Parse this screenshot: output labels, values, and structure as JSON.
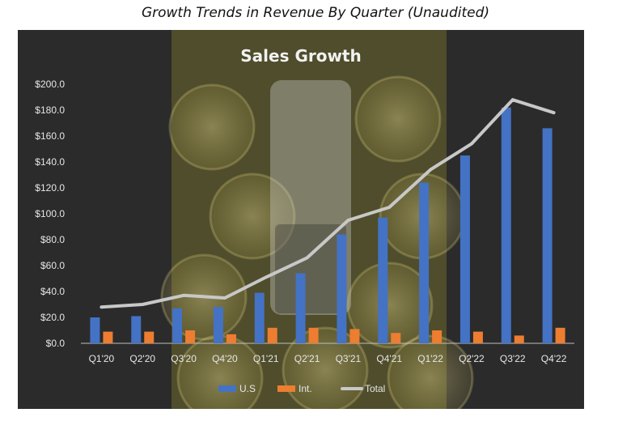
{
  "page": {
    "caption": "Growth Trends in Revenue By Quarter (Unaudited)"
  },
  "colors": {
    "us": "#4472c4",
    "intl": "#ed7d31",
    "total": "#c8c8c8",
    "background": "#2b2b2b",
    "highlight": "#8a8a2a"
  },
  "chart_data": {
    "type": "bar",
    "title": "Sales Growth",
    "categories": [
      "Q1'20",
      "Q2'20",
      "Q3'20",
      "Q4'20",
      "Q1'21",
      "Q2'21",
      "Q3'21",
      "Q4'21",
      "Q1'22",
      "Q2'22",
      "Q3'22",
      "Q4'22"
    ],
    "series": [
      {
        "name": "U.S",
        "type": "bar",
        "values": [
          20,
          21,
          27,
          28,
          39,
          54,
          84,
          97,
          124,
          145,
          182,
          166
        ]
      },
      {
        "name": "Int.",
        "type": "bar",
        "values": [
          9,
          9,
          10,
          7,
          12,
          12,
          11,
          8,
          10,
          9,
          6,
          12
        ]
      },
      {
        "name": "Total",
        "type": "line",
        "values": [
          28,
          30,
          37,
          35,
          51,
          66,
          95,
          105,
          134,
          154,
          188,
          178
        ]
      }
    ],
    "y_ticks": [
      "$0.0",
      "$20.0",
      "$40.0",
      "$60.0",
      "$80.0",
      "$100.0",
      "$120.0",
      "$140.0",
      "$160.0",
      "$180.0",
      "$200.0"
    ],
    "ylim": [
      0,
      200
    ],
    "grid": false,
    "legend": "bottom"
  }
}
